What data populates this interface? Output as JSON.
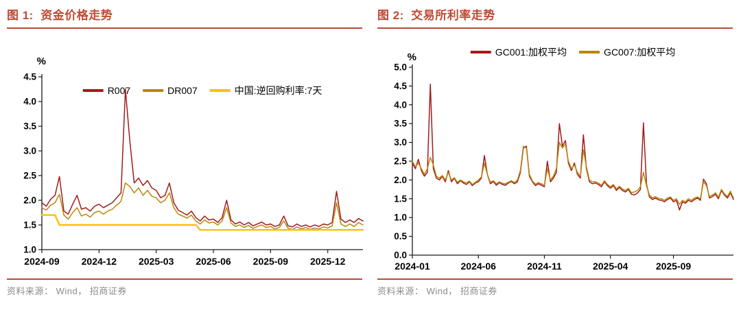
{
  "style": {
    "brick_color": "#be4a33",
    "source_color": "#8c8c8c",
    "axis_color": "#1a1a1a"
  },
  "chart_data": [
    {
      "type": "line",
      "title": "图 1:  资金价格走势",
      "source": "资料来源： Wind， 招商证券",
      "ylabel": "%",
      "ylim": [
        1.0,
        4.5
      ],
      "ytick_step": 0.5,
      "grid": false,
      "legend_position": "inside-top",
      "x_ticks": [
        "2024-09",
        "2024-12",
        "2025-03",
        "2025-06",
        "2025-09",
        "2025-12"
      ],
      "x_tick_positions": [
        0,
        13,
        26,
        39,
        52,
        65
      ],
      "series": [
        {
          "id": "r007",
          "name": "R007",
          "color": "#a11a1a",
          "width": 1.5,
          "values": [
            1.95,
            1.88,
            2.02,
            2.1,
            2.48,
            1.78,
            1.72,
            1.92,
            2.1,
            1.82,
            1.85,
            1.78,
            1.88,
            1.92,
            1.85,
            1.9,
            1.95,
            2.05,
            2.15,
            4.25,
            3.2,
            2.35,
            2.45,
            2.3,
            2.4,
            2.25,
            2.2,
            2.05,
            2.1,
            2.35,
            1.95,
            1.8,
            1.75,
            1.7,
            1.78,
            1.65,
            1.58,
            1.68,
            1.6,
            1.62,
            1.55,
            1.65,
            2.0,
            1.6,
            1.52,
            1.56,
            1.5,
            1.55,
            1.48,
            1.52,
            1.56,
            1.5,
            1.52,
            1.47,
            1.5,
            1.68,
            1.48,
            1.46,
            1.52,
            1.47,
            1.5,
            1.46,
            1.5,
            1.47,
            1.52,
            1.5,
            1.55,
            2.18,
            1.62,
            1.55,
            1.6,
            1.55,
            1.63,
            1.58
          ]
        },
        {
          "id": "dr007",
          "name": "DR007",
          "color": "#b8860b",
          "width": 1.5,
          "values": [
            1.85,
            1.8,
            1.9,
            1.95,
            2.12,
            1.7,
            1.62,
            1.75,
            1.85,
            1.68,
            1.72,
            1.66,
            1.75,
            1.78,
            1.72,
            1.78,
            1.82,
            1.9,
            1.98,
            2.35,
            2.28,
            2.15,
            2.25,
            2.1,
            2.2,
            2.08,
            2.05,
            1.95,
            2.0,
            2.15,
            1.85,
            1.72,
            1.68,
            1.64,
            1.7,
            1.58,
            1.52,
            1.6,
            1.54,
            1.56,
            1.5,
            1.58,
            1.85,
            1.54,
            1.47,
            1.5,
            1.45,
            1.49,
            1.43,
            1.47,
            1.5,
            1.45,
            1.47,
            1.42,
            1.45,
            1.58,
            1.43,
            1.41,
            1.46,
            1.42,
            1.45,
            1.41,
            1.44,
            1.42,
            1.46,
            1.44,
            1.48,
            1.95,
            1.52,
            1.47,
            1.52,
            1.47,
            1.55,
            1.5
          ]
        },
        {
          "id": "reverse-repo-7d",
          "name": "中国:逆回购利率:7天",
          "color": "#ffc000",
          "width": 2.4,
          "values": [
            1.7,
            1.7,
            1.7,
            1.7,
            1.5,
            1.5,
            1.5,
            1.5,
            1.5,
            1.5,
            1.5,
            1.5,
            1.5,
            1.5,
            1.5,
            1.5,
            1.5,
            1.5,
            1.5,
            1.5,
            1.5,
            1.5,
            1.5,
            1.5,
            1.5,
            1.5,
            1.5,
            1.5,
            1.5,
            1.5,
            1.5,
            1.5,
            1.5,
            1.5,
            1.5,
            1.5,
            1.4,
            1.4,
            1.4,
            1.4,
            1.4,
            1.4,
            1.4,
            1.4,
            1.4,
            1.4,
            1.4,
            1.4,
            1.4,
            1.4,
            1.4,
            1.4,
            1.4,
            1.4,
            1.4,
            1.4,
            1.4,
            1.4,
            1.4,
            1.4,
            1.4,
            1.4,
            1.4,
            1.4,
            1.4,
            1.4,
            1.4,
            1.4,
            1.4,
            1.4,
            1.4,
            1.4,
            1.4,
            1.4
          ]
        }
      ]
    },
    {
      "type": "line",
      "title": "图 2:  交易所利率走势",
      "source": "资料来源： Wind， 招商证券",
      "ylabel": "%",
      "ylim": [
        0.0,
        5.0
      ],
      "ytick_step": 0.5,
      "grid": false,
      "legend_position": "above",
      "x_ticks": [
        "2024-01",
        "2024-06",
        "2024-11",
        "2025-04",
        "2025-09"
      ],
      "x_tick_positions": [
        0,
        22,
        44,
        66,
        87
      ],
      "series": [
        {
          "id": "gc001",
          "name": "GC001:加权平均",
          "color": "#a11a1a",
          "width": 1.5,
          "values": [
            2.45,
            2.3,
            2.55,
            2.25,
            2.1,
            2.2,
            4.55,
            2.3,
            2.05,
            2.0,
            2.1,
            1.95,
            2.25,
            1.95,
            2.05,
            1.9,
            1.98,
            1.92,
            1.88,
            1.95,
            1.85,
            1.92,
            1.95,
            2.05,
            2.65,
            2.15,
            1.9,
            1.96,
            1.86,
            1.93,
            1.88,
            1.86,
            1.92,
            1.96,
            1.9,
            1.95,
            2.2,
            2.85,
            2.9,
            2.1,
            1.95,
            1.85,
            1.9,
            1.86,
            1.82,
            2.5,
            1.95,
            2.05,
            2.2,
            3.5,
            2.9,
            3.05,
            2.45,
            2.25,
            2.45,
            2.15,
            2.05,
            3.2,
            2.3,
            1.95,
            1.9,
            1.92,
            1.88,
            1.82,
            1.95,
            1.85,
            1.78,
            1.85,
            1.72,
            1.8,
            1.72,
            1.68,
            1.75,
            1.62,
            1.6,
            1.65,
            1.75,
            3.52,
            1.9,
            1.55,
            1.48,
            1.52,
            1.47,
            1.46,
            1.42,
            1.48,
            1.52,
            1.42,
            1.46,
            1.2,
            1.42,
            1.38,
            1.46,
            1.42,
            1.48,
            1.52,
            1.46,
            2.02,
            1.9,
            1.52,
            1.56,
            1.62,
            1.5,
            1.72,
            1.6,
            1.52,
            1.66,
            1.48
          ]
        },
        {
          "id": "gc007",
          "name": "GC007:加权平均",
          "color": "#b8860b",
          "width": 1.5,
          "values": [
            2.5,
            2.35,
            2.45,
            2.3,
            2.15,
            2.3,
            2.6,
            2.4,
            2.1,
            2.05,
            2.12,
            2.0,
            2.2,
            2.0,
            2.06,
            1.94,
            2.0,
            1.95,
            1.92,
            1.97,
            1.88,
            1.94,
            2.0,
            2.08,
            2.45,
            2.15,
            1.94,
            1.98,
            1.9,
            1.95,
            1.91,
            1.9,
            1.94,
            1.98,
            1.93,
            2.0,
            2.25,
            2.9,
            2.85,
            2.15,
            1.97,
            1.89,
            1.93,
            1.9,
            1.86,
            2.3,
            2.0,
            2.1,
            2.3,
            3.0,
            2.85,
            2.95,
            2.5,
            2.3,
            2.4,
            2.2,
            2.1,
            2.8,
            2.35,
            2.0,
            1.95,
            1.95,
            1.92,
            1.86,
            1.98,
            1.88,
            1.82,
            1.88,
            1.76,
            1.83,
            1.76,
            1.72,
            1.78,
            1.66,
            1.68,
            1.72,
            1.82,
            2.2,
            1.85,
            1.6,
            1.52,
            1.56,
            1.51,
            1.5,
            1.46,
            1.52,
            1.55,
            1.46,
            1.5,
            1.35,
            1.46,
            1.42,
            1.5,
            1.46,
            1.52,
            1.55,
            1.5,
            1.95,
            1.85,
            1.56,
            1.6,
            1.66,
            1.54,
            1.75,
            1.63,
            1.56,
            1.7,
            1.52
          ]
        }
      ]
    }
  ]
}
